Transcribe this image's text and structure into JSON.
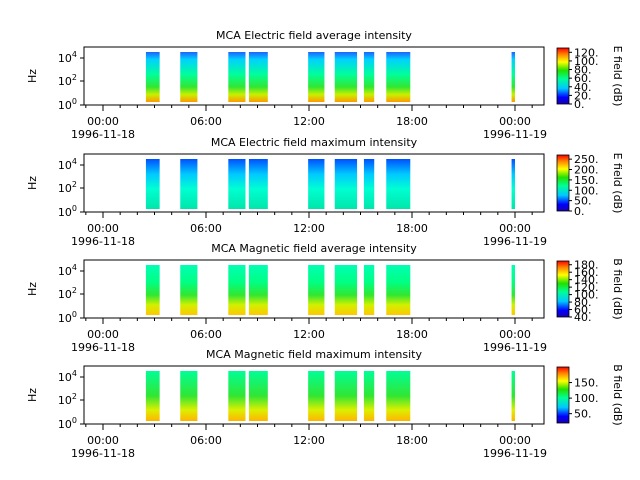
{
  "chart_data": [
    {
      "type": "heatmap",
      "title": "MCA  Electric field average intensity",
      "ylabel": "Hz",
      "ytick_labels": [
        "10^0",
        "10^2",
        "10^4"
      ],
      "xtick_labels": [
        "00:00",
        "06:00",
        "12:00",
        "18:00",
        "00:00"
      ],
      "xtick_dates": [
        "1996-11-18",
        "",
        "",
        "",
        "1996-11-19"
      ],
      "colorbar_label": "E field (dB)",
      "colorbar_ticks": [
        "0.",
        "20.",
        "40.",
        "60.",
        "80.",
        "100.",
        "120."
      ],
      "colorbar_range": [
        0,
        130
      ]
    },
    {
      "type": "heatmap",
      "title": "MCA  Electric field maximum intensity",
      "ylabel": "Hz",
      "ytick_labels": [
        "10^0",
        "10^2",
        "10^4"
      ],
      "xtick_labels": [
        "00:00",
        "06:00",
        "12:00",
        "18:00",
        "00:00"
      ],
      "xtick_dates": [
        "1996-11-18",
        "",
        "",
        "",
        "1996-11-19"
      ],
      "colorbar_label": "E field (dB)",
      "colorbar_ticks": [
        "0.",
        "50.",
        "100.",
        "150.",
        "200.",
        "250."
      ],
      "colorbar_range": [
        0,
        270
      ]
    },
    {
      "type": "heatmap",
      "title": "MCA  Magnetic field average intensity",
      "ylabel": "Hz",
      "ytick_labels": [
        "10^0",
        "10^2",
        "10^4"
      ],
      "xtick_labels": [
        "00:00",
        "06:00",
        "12:00",
        "18:00",
        "00:00"
      ],
      "xtick_dates": [
        "1996-11-18",
        "",
        "",
        "",
        "1996-11-19"
      ],
      "colorbar_label": "B field (dB)",
      "colorbar_ticks": [
        "40.",
        "60.",
        "80.",
        "100.",
        "120.",
        "140.",
        "160.",
        "180."
      ],
      "colorbar_range": [
        40,
        190
      ]
    },
    {
      "type": "heatmap",
      "title": "MCA  Magnetic field maximum intensity",
      "ylabel": "Hz",
      "ytick_labels": [
        "10^0",
        "10^2",
        "10^4"
      ],
      "xtick_labels": [
        "00:00",
        "06:00",
        "12:00",
        "18:00",
        "00:00"
      ],
      "xtick_dates": [
        "1996-11-18",
        "",
        "",
        "",
        "1996-11-19"
      ],
      "colorbar_label": "B field (dB)",
      "colorbar_ticks": [
        "50.",
        "100.",
        "150."
      ],
      "colorbar_range": [
        20,
        200
      ]
    }
  ]
}
